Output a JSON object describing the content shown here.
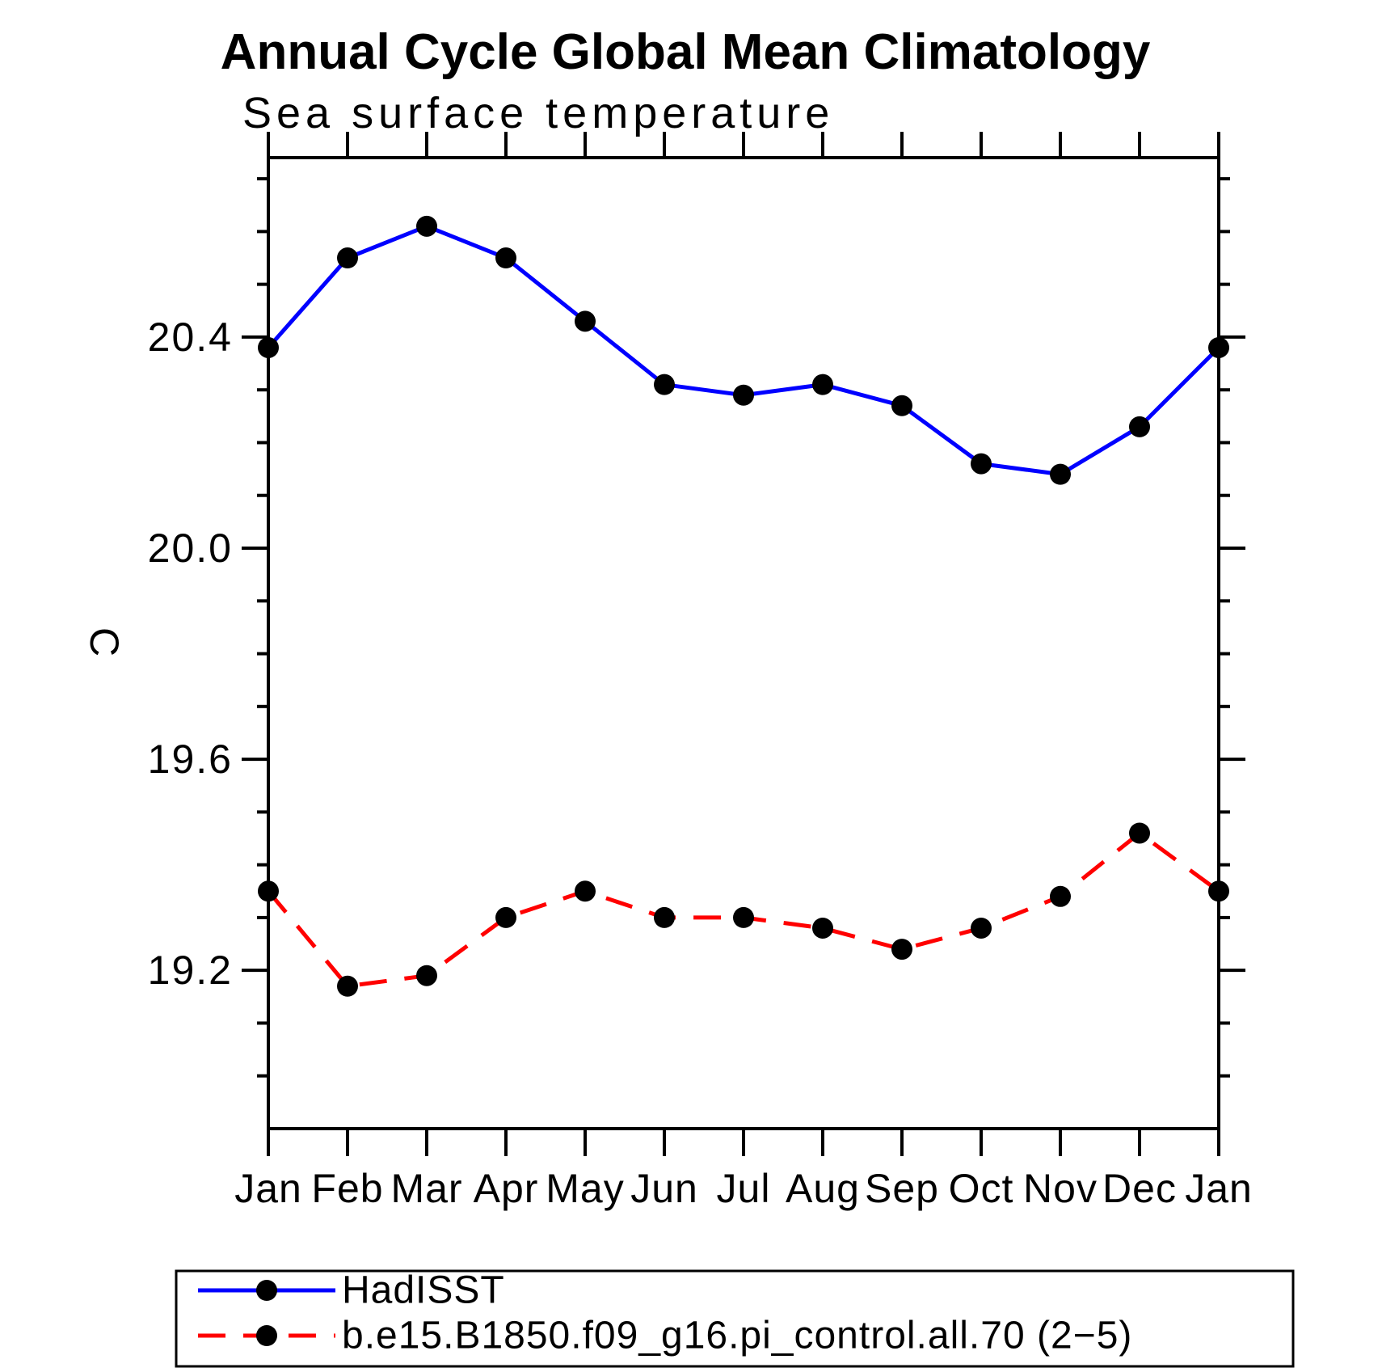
{
  "title": "Annual Cycle Global Mean Climatology",
  "subtitle": "Sea surface temperature",
  "y_axis": {
    "label": "C",
    "major_ticks": [
      {
        "value": 19.2,
        "label": "19.2"
      },
      {
        "value": 19.6,
        "label": "19.6"
      },
      {
        "value": 20.0,
        "label": "20.0"
      },
      {
        "value": 20.4,
        "label": "20.4"
      }
    ],
    "minor_tick_step": 0.1
  },
  "x_axis": {
    "tick_labels": [
      "Jan",
      "Feb",
      "Mar",
      "Apr",
      "May",
      "Jun",
      "Jul",
      "Aug",
      "Sep",
      "Oct",
      "Nov",
      "Dec",
      "Jan"
    ]
  },
  "chart_data": {
    "type": "line",
    "title": "Annual Cycle Global Mean Climatology",
    "subtitle": "Sea surface temperature",
    "ylabel": "C",
    "ylim": [
      18.9,
      20.74
    ],
    "grid": false,
    "legend_position": "bottom",
    "categories": [
      "Jan",
      "Feb",
      "Mar",
      "Apr",
      "May",
      "Jun",
      "Jul",
      "Aug",
      "Sep",
      "Oct",
      "Nov",
      "Dec",
      "Jan"
    ],
    "series": [
      {
        "name": "HadISST",
        "color": "#0000ff",
        "line_style": "solid",
        "marker": "circle",
        "marker_color": "#000000",
        "values": [
          20.38,
          20.55,
          20.61,
          20.55,
          20.43,
          20.31,
          20.29,
          20.31,
          20.27,
          20.16,
          20.14,
          20.23,
          20.38
        ]
      },
      {
        "name": "b.e15.B1850.f09_g16.pi_control.all.70 (2−5)",
        "color": "#ff0000",
        "line_style": "dashed",
        "marker": "circle",
        "marker_color": "#000000",
        "values": [
          19.35,
          19.17,
          19.19,
          19.3,
          19.35,
          19.3,
          19.3,
          19.28,
          19.24,
          19.28,
          19.34,
          19.46,
          19.35
        ]
      }
    ]
  }
}
